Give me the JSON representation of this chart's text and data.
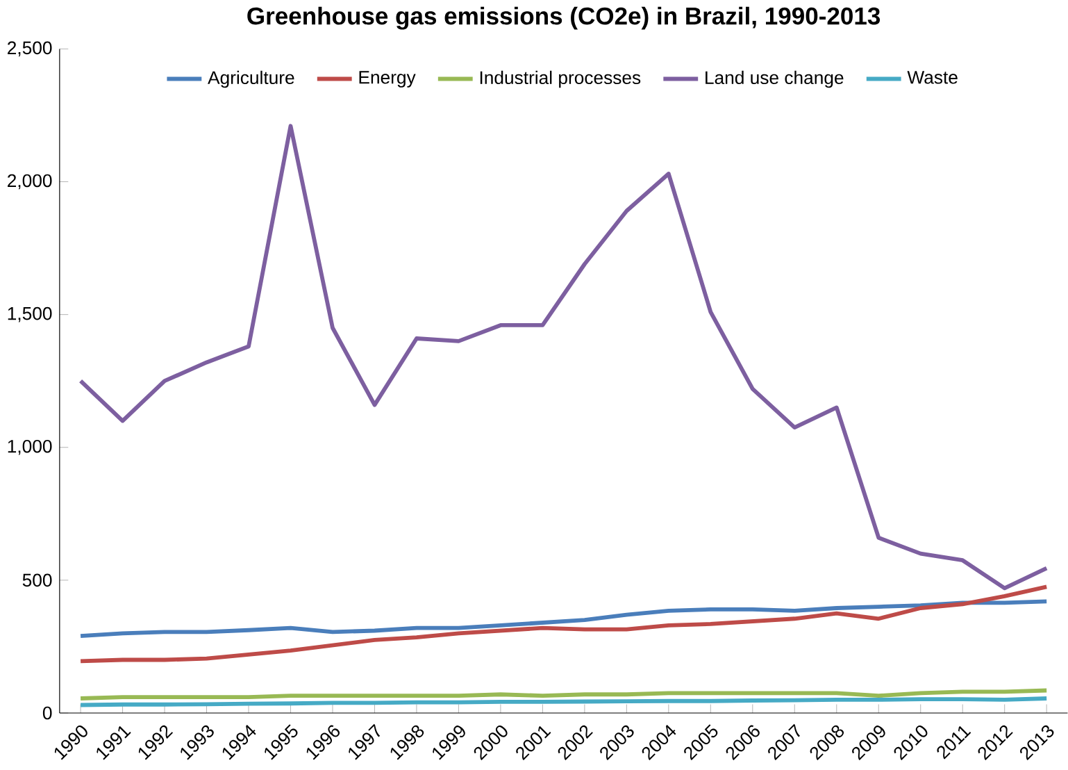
{
  "chart_data": {
    "type": "line",
    "title": "Greenhouse gas emissions (CO2e) in Brazil, 1990-2013",
    "categories": [
      "1990",
      "1991",
      "1992",
      "1993",
      "1994",
      "1995",
      "1996",
      "1997",
      "1998",
      "1999",
      "2000",
      "2001",
      "2002",
      "2003",
      "2004",
      "2005",
      "2006",
      "2007",
      "2008",
      "2009",
      "2010",
      "2011",
      "2012",
      "2013"
    ],
    "series": [
      {
        "name": "Agriculture",
        "color": "#4a7ebb",
        "values": [
          290,
          300,
          305,
          305,
          312,
          320,
          305,
          310,
          320,
          320,
          330,
          340,
          350,
          370,
          385,
          390,
          390,
          385,
          395,
          400,
          405,
          415,
          415,
          420
        ]
      },
      {
        "name": "Energy",
        "color": "#be4b48",
        "values": [
          195,
          200,
          200,
          205,
          220,
          235,
          255,
          275,
          285,
          300,
          310,
          320,
          315,
          315,
          330,
          335,
          345,
          355,
          375,
          355,
          395,
          410,
          440,
          475
        ]
      },
      {
        "name": "Industrial processes",
        "color": "#98b954",
        "values": [
          55,
          60,
          60,
          60,
          60,
          65,
          65,
          65,
          65,
          65,
          70,
          65,
          70,
          70,
          75,
          75,
          75,
          75,
          75,
          65,
          75,
          80,
          80,
          85
        ]
      },
      {
        "name": "Land use change",
        "color": "#7d5fa0",
        "values": [
          1250,
          1100,
          1250,
          1320,
          1380,
          2210,
          1450,
          1160,
          1410,
          1400,
          1460,
          1460,
          1690,
          1890,
          2030,
          1510,
          1220,
          1075,
          1150,
          660,
          600,
          575,
          470,
          545
        ]
      },
      {
        "name": "Waste",
        "color": "#46aac5",
        "values": [
          30,
          32,
          32,
          33,
          35,
          36,
          38,
          38,
          40,
          40,
          42,
          42,
          43,
          44,
          45,
          45,
          47,
          48,
          50,
          50,
          52,
          52,
          50,
          55
        ]
      }
    ],
    "ylim": [
      0,
      2500
    ],
    "yticks": [
      0,
      {
        "value": 500,
        "label": "500"
      },
      {
        "value": 1000,
        "label": "1,000"
      },
      {
        "value": 1500,
        "label": "1,500"
      },
      {
        "value": 2000,
        "label": "2,000"
      },
      {
        "value": 2500,
        "label": "2,500"
      }
    ],
    "legend": "top",
    "grid": false,
    "marker": "none",
    "line_style": "solid"
  }
}
